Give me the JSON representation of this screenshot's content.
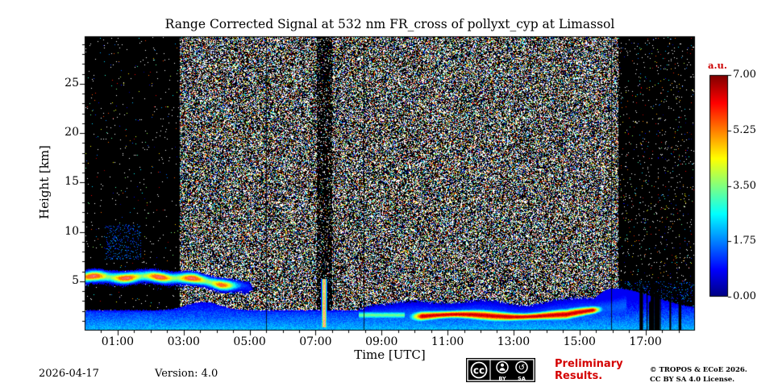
{
  "chart_data": {
    "type": "heatmap",
    "title": "Range Corrected Signal at 532 nm FR_cross of pollyxt_cyp at Limassol",
    "xlabel": "Time [UTC]",
    "ylabel": "Height [km]",
    "x_range_hours": [
      0,
      18.5
    ],
    "y_range_km": [
      0,
      29.8
    ],
    "x_ticks": [
      {
        "hour": 1,
        "label": "01:00"
      },
      {
        "hour": 3,
        "label": "03:00"
      },
      {
        "hour": 5,
        "label": "05:00"
      },
      {
        "hour": 7,
        "label": "07:00"
      },
      {
        "hour": 9,
        "label": "09:00"
      },
      {
        "hour": 11,
        "label": "11:00"
      },
      {
        "hour": 13,
        "label": "13:00"
      },
      {
        "hour": 15,
        "label": "15:00"
      },
      {
        "hour": 17,
        "label": "17:00"
      }
    ],
    "y_ticks": [
      {
        "km": 5,
        "label": "5"
      },
      {
        "km": 10,
        "label": "10"
      },
      {
        "km": 15,
        "label": "15"
      },
      {
        "km": 20,
        "label": "20"
      },
      {
        "km": 25,
        "label": "25"
      }
    ],
    "colorbar": {
      "label": "a.u.",
      "colormap": "jet",
      "range": [
        0,
        7
      ],
      "ticks": [
        {
          "value": 0,
          "label": "0.00"
        },
        {
          "value": 1.75,
          "label": "1.75"
        },
        {
          "value": 3.5,
          "label": "3.50"
        },
        {
          "value": 5.25,
          "label": "5.25"
        },
        {
          "value": 7,
          "label": "7.00"
        }
      ]
    },
    "features": {
      "dense_noise": {
        "t": [
          2.88,
          16.17
        ],
        "density": 0.5,
        "white_fraction": 0.55
      },
      "sparse_noise_left": {
        "t": [
          0,
          2.88
        ],
        "density": 0.012
      },
      "sparse_noise_right": {
        "t": [
          16.17,
          18.5
        ],
        "h_min": 5.0,
        "density": 0.03,
        "low_density": 0.1
      },
      "left_plumes": {
        "t": [
          0.6,
          1.7
        ],
        "h": [
          7.2,
          10.8
        ],
        "density": 0.15,
        "value": 1.5
      },
      "boundary_layer": {
        "surface_value": 1.95,
        "lapse": 0.5,
        "base_top": 2.3,
        "bump_t": 3.6,
        "bump_amp": 0.9,
        "rise_t": 16.0,
        "rise_amp": 2.3
      },
      "elevated_layer": {
        "t": [
          0,
          5.2
        ],
        "center_km": 5.45,
        "descend_start": 2.8,
        "descend_rate": 0.5,
        "width_km": 0.35,
        "peak": 6.2
      },
      "strong_low_layer": {
        "t": [
          9.7,
          15.8
        ],
        "center_km": 1.55,
        "width_km": 0.3,
        "peak": 6.5
      },
      "precursor_layer": {
        "t": [
          8.3,
          9.7
        ],
        "center_km": 1.6,
        "width_km": 0.25,
        "peak": 3.4
      },
      "rain_streak": {
        "t": [
          7.0,
          7.5
        ],
        "center_t": 7.25,
        "h": [
          0.4,
          5.3
        ],
        "value": 5.6
      },
      "dark_column": {
        "t": [
          7.02,
          7.5
        ]
      },
      "profile_lines_hours": [
        5.5,
        8.45,
        15.95
      ],
      "gap_stripes": {
        "t": [
          16.8,
          18.25
        ],
        "count": 12,
        "h_max": 5.2
      }
    }
  },
  "colors": {
    "preliminary_red": "#d40000",
    "colorbar_label_red": "#cc0000",
    "axis_black": "#000000",
    "badge_background": "#000000"
  },
  "footer": {
    "date": "2026-04-17",
    "version": "Version: 4.0",
    "preliminary": "Preliminary Results.",
    "copyright_line1": "© TROPOS & ECoE 2026.",
    "copyright_line2": "CC BY SA 4.0 License.",
    "badge": {
      "cc": "cc",
      "by": "BY",
      "sa": "SA",
      "sa_arrow": "↺"
    }
  }
}
